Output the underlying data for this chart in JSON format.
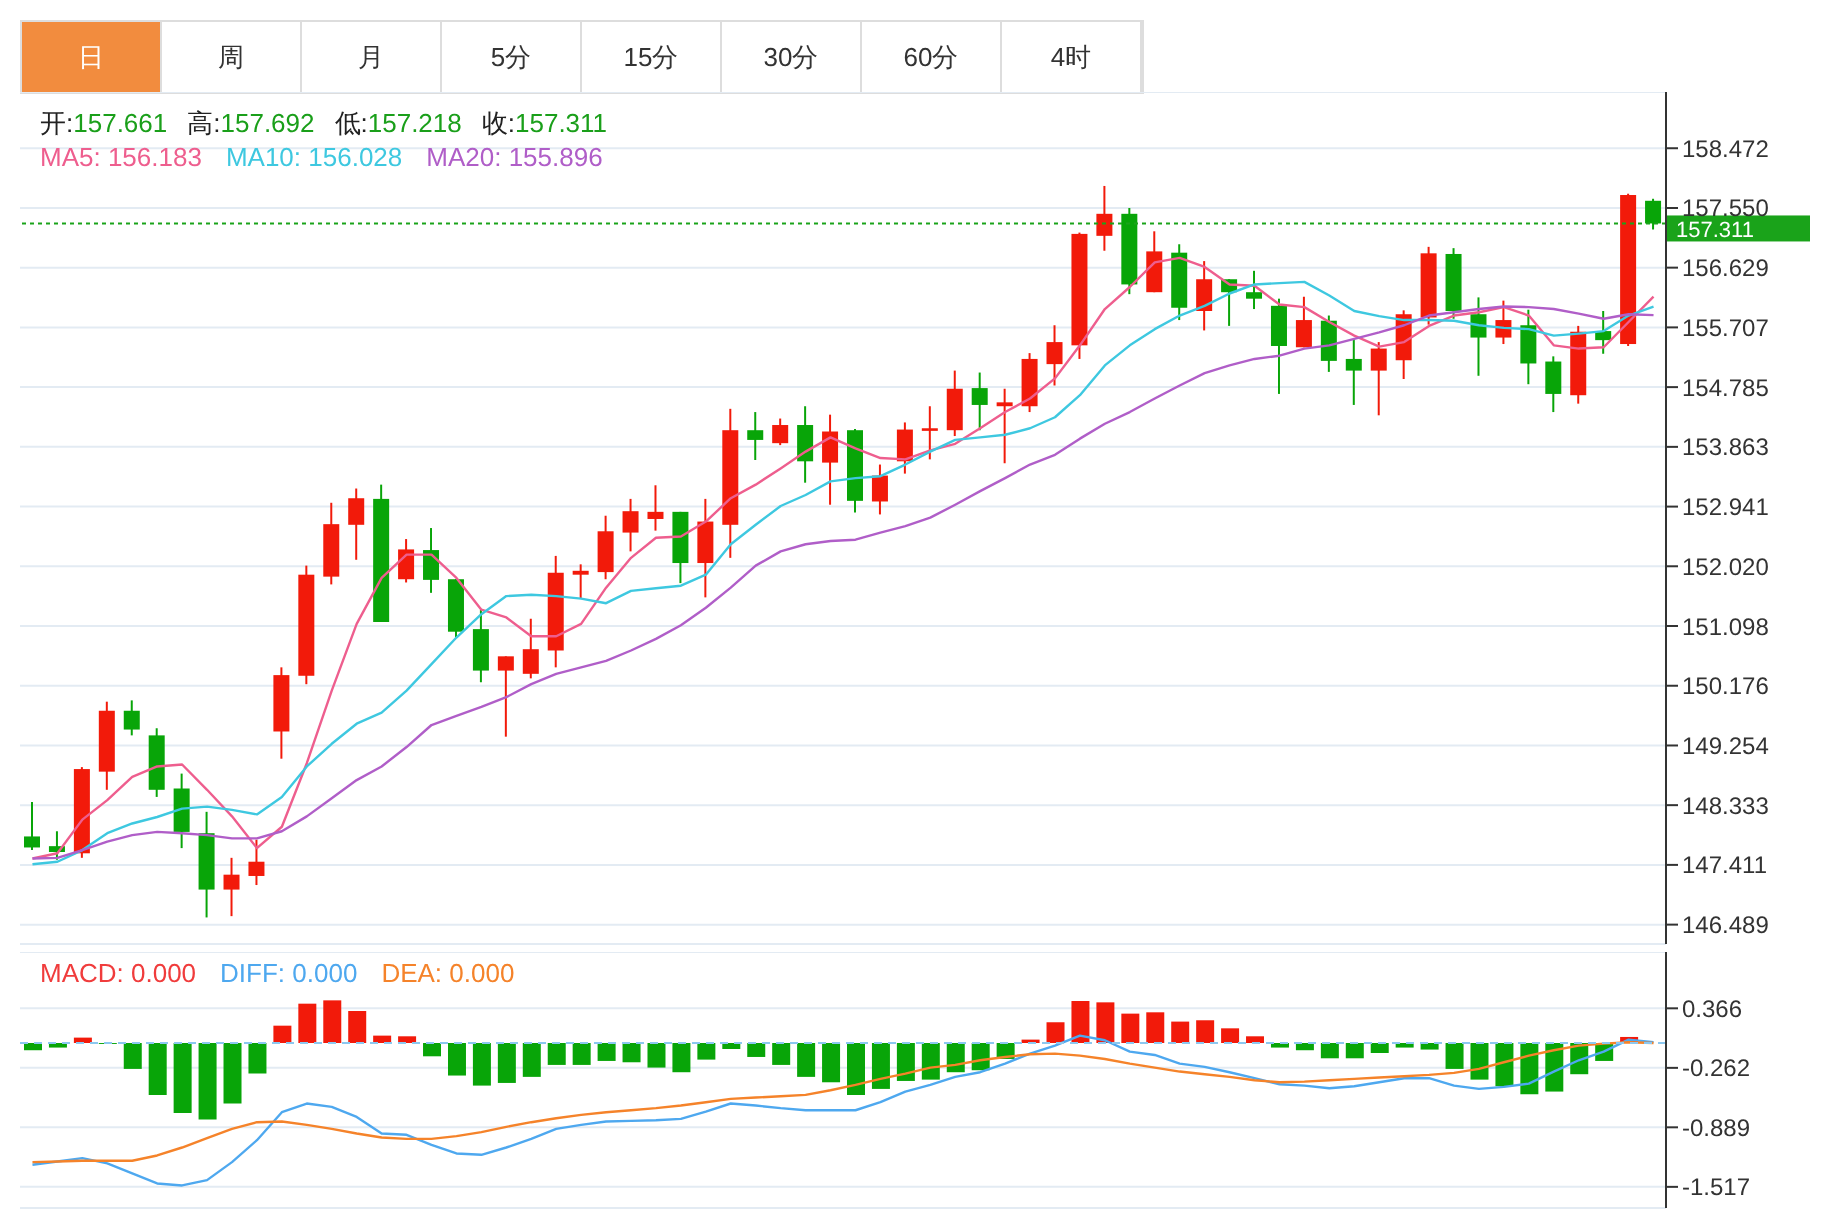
{
  "chart_data": [
    {
      "type": "other",
      "annotations": [
        "日",
        "周",
        "月",
        "5分",
        "15分",
        "30分",
        "60分",
        "4时"
      ]
    },
    {
      "type": "candlestick",
      "categories": [
        null,
        null,
        null,
        null,
        null,
        null,
        null,
        null,
        null,
        null,
        null,
        null,
        null,
        null,
        null,
        null,
        null,
        null,
        null,
        null,
        null,
        null,
        null,
        null,
        null,
        null,
        null,
        null,
        null,
        null,
        null,
        null,
        null,
        null,
        null,
        null,
        null,
        null,
        null,
        null,
        null,
        null,
        null,
        null,
        null,
        null,
        null,
        null,
        null,
        null,
        null,
        null,
        null,
        null,
        null,
        null,
        null,
        null,
        null,
        null,
        null,
        null,
        null,
        null,
        null,
        null
      ],
      "ohlc": [
        [
          147.85,
          148.38,
          147.64,
          147.68
        ],
        [
          147.7,
          147.93,
          147.49,
          147.61
        ],
        [
          147.59,
          148.92,
          147.52,
          148.89
        ],
        [
          148.85,
          149.93,
          148.57,
          149.79
        ],
        [
          149.79,
          149.95,
          149.41,
          149.5
        ],
        [
          149.41,
          149.52,
          148.46,
          148.57
        ],
        [
          148.59,
          148.82,
          147.67,
          147.92
        ],
        [
          147.9,
          148.23,
          146.6,
          147.03
        ],
        [
          147.03,
          147.52,
          146.62,
          147.26
        ],
        [
          147.24,
          147.8,
          147.1,
          147.46
        ],
        [
          149.47,
          150.46,
          149.05,
          150.34
        ],
        [
          150.33,
          152.03,
          150.2,
          151.89
        ],
        [
          151.86,
          153.0,
          151.74,
          152.67
        ],
        [
          152.66,
          153.22,
          152.12,
          153.07
        ],
        [
          153.06,
          153.28,
          151.16,
          151.16
        ],
        [
          151.82,
          152.44,
          151.77,
          152.28
        ],
        [
          152.27,
          152.61,
          151.61,
          151.81
        ],
        [
          151.82,
          151.82,
          150.92,
          151.01
        ],
        [
          151.05,
          151.35,
          150.23,
          150.41
        ],
        [
          150.41,
          150.63,
          149.39,
          150.63
        ],
        [
          150.36,
          151.21,
          150.29,
          150.74
        ],
        [
          150.72,
          152.18,
          150.46,
          151.92
        ],
        [
          151.89,
          152.05,
          151.52,
          151.95
        ],
        [
          151.93,
          152.8,
          151.82,
          152.56
        ],
        [
          152.54,
          153.06,
          152.25,
          152.87
        ],
        [
          152.75,
          153.27,
          152.57,
          152.86
        ],
        [
          152.86,
          152.86,
          151.76,
          152.07
        ],
        [
          152.07,
          153.06,
          151.54,
          152.71
        ],
        [
          152.66,
          154.45,
          152.15,
          154.12
        ],
        [
          154.12,
          154.4,
          153.66,
          153.97
        ],
        [
          153.92,
          154.3,
          153.89,
          154.2
        ],
        [
          154.2,
          154.49,
          153.31,
          153.64
        ],
        [
          153.62,
          154.36,
          152.97,
          154.1
        ],
        [
          154.12,
          154.14,
          152.85,
          153.03
        ],
        [
          153.02,
          153.59,
          152.82,
          153.42
        ],
        [
          153.64,
          154.24,
          153.45,
          154.13
        ],
        [
          154.11,
          154.49,
          153.67,
          154.15
        ],
        [
          154.12,
          155.04,
          154.03,
          154.76
        ],
        [
          154.77,
          155.01,
          154.12,
          154.51
        ],
        [
          154.49,
          154.76,
          153.61,
          154.55
        ],
        [
          154.49,
          155.31,
          154.4,
          155.22
        ],
        [
          155.14,
          155.74,
          154.81,
          155.48
        ],
        [
          155.43,
          157.17,
          155.22,
          157.15
        ],
        [
          157.12,
          157.89,
          156.89,
          157.46
        ],
        [
          157.46,
          157.55,
          156.22,
          156.37
        ],
        [
          156.25,
          157.19,
          156.25,
          156.88
        ],
        [
          156.86,
          156.99,
          155.82,
          156.01
        ],
        [
          155.96,
          156.73,
          155.66,
          156.45
        ],
        [
          156.45,
          156.45,
          155.73,
          156.25
        ],
        [
          156.25,
          156.58,
          155.99,
          156.15
        ],
        [
          156.04,
          156.15,
          154.68,
          155.42
        ],
        [
          155.4,
          156.18,
          155.4,
          155.82
        ],
        [
          155.81,
          155.89,
          155.02,
          155.19
        ],
        [
          155.22,
          155.53,
          154.51,
          155.04
        ],
        [
          155.04,
          155.48,
          154.35,
          155.38
        ],
        [
          155.2,
          155.97,
          154.91,
          155.91
        ],
        [
          155.86,
          156.95,
          155.75,
          156.85
        ],
        [
          156.84,
          156.93,
          155.84,
          155.96
        ],
        [
          155.91,
          156.17,
          154.96,
          155.55
        ],
        [
          155.55,
          156.12,
          155.45,
          155.82
        ],
        [
          155.74,
          155.98,
          154.83,
          155.15
        ],
        [
          155.18,
          155.26,
          154.4,
          154.68
        ],
        [
          154.66,
          155.73,
          154.53,
          155.64
        ],
        [
          155.65,
          155.96,
          155.3,
          155.51
        ],
        [
          155.45,
          157.77,
          155.42,
          157.75
        ],
        [
          157.661,
          157.692,
          157.218,
          157.311
        ]
      ],
      "colors": [
        "#08a508",
        "#08a508",
        "#f21a0a",
        "#f21a0a",
        "#08a508",
        "#08a508",
        "#08a508",
        "#08a508",
        "#f21a0a",
        "#f21a0a",
        "#f21a0a",
        "#f21a0a",
        "#f21a0a",
        "#f21a0a",
        "#08a508",
        "#f21a0a",
        "#08a508",
        "#08a508",
        "#08a508",
        "#f21a0a",
        "#f21a0a",
        "#f21a0a",
        "#f21a0a",
        "#f21a0a",
        "#f21a0a",
        "#f21a0a",
        "#08a508",
        "#f21a0a",
        "#f21a0a",
        "#08a508",
        "#f21a0a",
        "#08a508",
        "#f21a0a",
        "#08a508",
        "#f21a0a",
        "#f21a0a",
        "#f21a0a",
        "#f21a0a",
        "#08a508",
        "#f21a0a",
        "#f21a0a",
        "#f21a0a",
        "#f21a0a",
        "#f21a0a",
        "#08a508",
        "#f21a0a",
        "#08a508",
        "#f21a0a",
        "#08a508",
        "#08a508",
        "#08a508",
        "#f21a0a",
        "#08a508",
        "#08a508",
        "#f21a0a",
        "#f21a0a",
        "#f21a0a",
        "#08a508",
        "#08a508",
        "#f21a0a",
        "#08a508",
        "#08a508",
        "#f21a0a",
        "#08a508",
        "#f21a0a",
        "#08a508"
      ],
      "series": [
        {
          "type": "line",
          "name": "MA5: 156.183",
          "color": "#ee5e8e",
          "values": [
            147.51,
            147.59,
            148.11,
            148.41,
            148.77,
            148.93,
            148.96,
            148.57,
            148.16,
            147.67,
            148.0,
            148.98,
            150.1,
            151.13,
            151.84,
            152.2,
            152.2,
            151.84,
            151.35,
            151.23,
            150.94,
            150.94,
            151.13,
            151.69,
            152.15,
            152.46,
            152.48,
            152.71,
            153.07,
            153.28,
            153.53,
            153.79,
            154.01,
            153.84,
            153.69,
            153.67,
            153.81,
            153.91,
            154.15,
            154.4,
            154.61,
            154.92,
            155.43,
            155.99,
            156.33,
            156.71,
            156.78,
            156.64,
            156.37,
            156.35,
            156.06,
            156.02,
            155.79,
            155.58,
            155.41,
            155.48,
            155.73,
            155.89,
            155.94,
            156.02,
            155.89,
            155.43,
            155.38,
            155.4,
            155.79,
            156.183
          ]
        },
        {
          "type": "line",
          "name": "MA10: 156.028",
          "color": "#3ec8e0",
          "values": [
            147.42,
            147.46,
            147.64,
            147.9,
            148.05,
            148.15,
            148.28,
            148.31,
            148.26,
            148.19,
            148.46,
            148.93,
            149.28,
            149.59,
            149.76,
            150.1,
            150.51,
            150.92,
            151.28,
            151.56,
            151.58,
            151.56,
            151.52,
            151.45,
            151.64,
            151.68,
            151.72,
            151.89,
            152.36,
            152.66,
            152.95,
            153.12,
            153.33,
            153.38,
            153.41,
            153.59,
            153.79,
            153.97,
            154.01,
            154.05,
            154.15,
            154.32,
            154.66,
            155.12,
            155.43,
            155.68,
            155.89,
            156.04,
            156.23,
            156.37,
            156.39,
            156.41,
            156.2,
            155.96,
            155.88,
            155.82,
            155.82,
            155.81,
            155.74,
            155.7,
            155.68,
            155.58,
            155.61,
            155.65,
            155.89,
            156.028
          ]
        },
        {
          "type": "line",
          "name": "MA20: 155.896",
          "color": "#b05ec8",
          "values": [
            147.51,
            147.52,
            147.64,
            147.77,
            147.87,
            147.92,
            147.9,
            147.87,
            147.82,
            147.82,
            147.93,
            148.16,
            148.44,
            148.72,
            148.93,
            149.23,
            149.57,
            149.71,
            149.85,
            150.0,
            150.2,
            150.36,
            150.46,
            150.56,
            150.72,
            150.9,
            151.11,
            151.38,
            151.69,
            152.03,
            152.25,
            152.36,
            152.41,
            152.43,
            152.54,
            152.64,
            152.77,
            152.97,
            153.18,
            153.38,
            153.59,
            153.74,
            153.99,
            154.22,
            154.4,
            154.61,
            154.81,
            155.0,
            155.12,
            155.22,
            155.27,
            155.38,
            155.43,
            155.53,
            155.63,
            155.74,
            155.89,
            155.94,
            155.99,
            156.03,
            156.02,
            155.99,
            155.92,
            155.84,
            155.91,
            155.896
          ]
        }
      ],
      "ylim": [
        146.19,
        159.34
      ],
      "yticks": [
        {
          "value": 146.489,
          "label": "146.489"
        },
        {
          "value": 147.411,
          "label": "147.411"
        },
        {
          "value": 148.333,
          "label": "148.333"
        },
        {
          "value": 149.254,
          "label": "149.254"
        },
        {
          "value": 150.176,
          "label": "150.176"
        },
        {
          "value": 151.098,
          "label": "151.098"
        },
        {
          "value": 152.02,
          "label": "152.020"
        },
        {
          "value": 152.941,
          "label": "152.941"
        },
        {
          "value": 153.863,
          "label": "153.863"
        },
        {
          "value": 154.785,
          "label": "154.785"
        },
        {
          "value": 155.707,
          "label": "155.707"
        },
        {
          "value": 156.629,
          "label": "156.629"
        },
        {
          "value": 157.55,
          "label": "157.550"
        },
        {
          "value": 158.472,
          "label": "158.472"
        }
      ],
      "ref_lines": [
        {
          "axis": "y",
          "value": 157.311,
          "label": "157.311",
          "color": "#1aa31a",
          "line_style": "dotted"
        }
      ],
      "annotations": [
        "开:157.661",
        "高:157.692",
        "低:157.218",
        "收:157.311"
      ],
      "legend": "top left",
      "grid": "y",
      "marker": "none",
      "line_style": "solid",
      "tick_labels": "y"
    },
    {
      "type": "bar",
      "categories": [
        null,
        null,
        null,
        null,
        null,
        null,
        null,
        null,
        null,
        null,
        null,
        null,
        null,
        null,
        null,
        null,
        null,
        null,
        null,
        null,
        null,
        null,
        null,
        null,
        null,
        null,
        null,
        null,
        null,
        null,
        null,
        null,
        null,
        null,
        null,
        null,
        null,
        null,
        null,
        null,
        null,
        null,
        null,
        null,
        null,
        null,
        null,
        null,
        null,
        null,
        null,
        null,
        null,
        null,
        null,
        null,
        null,
        null,
        null,
        null,
        null,
        null,
        null,
        null,
        null,
        null
      ],
      "series": [
        {
          "name": "MACD: 0.000",
          "color": "#f03c3c",
          "values": [
            -0.076,
            -0.048,
            0.057,
            -0.01,
            -0.273,
            -0.547,
            -0.737,
            -0.807,
            -0.638,
            -0.322,
            0.183,
            0.415,
            0.45,
            0.338,
            0.078,
            0.071,
            -0.14,
            -0.343,
            -0.449,
            -0.421,
            -0.357,
            -0.231,
            -0.231,
            -0.189,
            -0.203,
            -0.259,
            -0.308,
            -0.175,
            -0.063,
            -0.147,
            -0.231,
            -0.357,
            -0.414,
            -0.547,
            -0.484,
            -0.4,
            -0.386,
            -0.308,
            -0.287,
            -0.168,
            0.036,
            0.219,
            0.443,
            0.429,
            0.31,
            0.324,
            0.226,
            0.24,
            0.155,
            0.071,
            -0.048,
            -0.076,
            -0.161,
            -0.161,
            -0.105,
            -0.048,
            -0.069,
            -0.273,
            -0.386,
            -0.456,
            -0.54,
            -0.512,
            -0.329,
            -0.189,
            0.064,
            null
          ],
          "colors": [
            "#08a508",
            "#08a508",
            "#f21a0a",
            "#08a508",
            "#08a508",
            "#08a508",
            "#08a508",
            "#08a508",
            "#08a508",
            "#08a508",
            "#f21a0a",
            "#f21a0a",
            "#f21a0a",
            "#f21a0a",
            "#f21a0a",
            "#f21a0a",
            "#08a508",
            "#08a508",
            "#08a508",
            "#08a508",
            "#08a508",
            "#08a508",
            "#08a508",
            "#08a508",
            "#08a508",
            "#08a508",
            "#08a508",
            "#08a508",
            "#08a508",
            "#08a508",
            "#08a508",
            "#08a508",
            "#08a508",
            "#08a508",
            "#08a508",
            "#08a508",
            "#08a508",
            "#08a508",
            "#08a508",
            "#08a508",
            "#f21a0a",
            "#f21a0a",
            "#f21a0a",
            "#f21a0a",
            "#f21a0a",
            "#f21a0a",
            "#f21a0a",
            "#f21a0a",
            "#f21a0a",
            "#f21a0a",
            "#08a508",
            "#08a508",
            "#08a508",
            "#08a508",
            "#08a508",
            "#08a508",
            "#08a508",
            "#08a508",
            "#08a508",
            "#08a508",
            "#08a508",
            "#08a508",
            "#08a508",
            "#08a508",
            "#f21a0a",
            "#f21a0a"
          ]
        },
        {
          "type": "line",
          "name": "DIFF: 0.000",
          "color": "#4ea8ef",
          "values": [
            -1.284,
            -1.249,
            -1.214,
            -1.27,
            -1.376,
            -1.481,
            -1.502,
            -1.446,
            -1.256,
            -1.025,
            -0.73,
            -0.638,
            -0.673,
            -0.779,
            -0.954,
            -0.968,
            -1.074,
            -1.165,
            -1.179,
            -1.102,
            -1.011,
            -0.905,
            -0.863,
            -0.828,
            -0.821,
            -0.814,
            -0.8,
            -0.723,
            -0.638,
            -0.659,
            -0.687,
            -0.709,
            -0.709,
            -0.709,
            -0.624,
            -0.512,
            -0.442,
            -0.357,
            -0.308,
            -0.217,
            -0.111,
            -0.027,
            0.078,
            0.029,
            -0.091,
            -0.126,
            -0.217,
            -0.252,
            -0.308,
            -0.371,
            -0.435,
            -0.449,
            -0.477,
            -0.456,
            -0.414,
            -0.371,
            -0.371,
            -0.449,
            -0.484,
            -0.463,
            -0.428,
            -0.301,
            -0.182,
            -0.091,
            0.036,
            0.01
          ]
        },
        {
          "type": "line",
          "name": "DEA: 0.000",
          "color": "#f5832a",
          "values": [
            -1.256,
            -1.249,
            -1.242,
            -1.242,
            -1.242,
            -1.186,
            -1.102,
            -1.003,
            -0.905,
            -0.835,
            -0.828,
            -0.863,
            -0.905,
            -0.954,
            -0.997,
            -1.011,
            -1.011,
            -0.982,
            -0.94,
            -0.884,
            -0.835,
            -0.793,
            -0.758,
            -0.73,
            -0.709,
            -0.687,
            -0.659,
            -0.624,
            -0.589,
            -0.575,
            -0.561,
            -0.547,
            -0.498,
            -0.442,
            -0.378,
            -0.322,
            -0.259,
            -0.231,
            -0.182,
            -0.147,
            -0.119,
            -0.112,
            -0.133,
            -0.168,
            -0.217,
            -0.259,
            -0.301,
            -0.329,
            -0.357,
            -0.392,
            -0.414,
            -0.407,
            -0.392,
            -0.378,
            -0.364,
            -0.35,
            -0.336,
            -0.315,
            -0.273,
            -0.203,
            -0.133,
            -0.076,
            -0.027,
            -0.006,
            0.008,
            0
          ]
        }
      ],
      "ylim": [
        -1.74,
        0.96
      ],
      "yticks": [
        0.366,
        -0.262,
        -0.889,
        -1.517
      ],
      "ref_lines": [
        {
          "axis": "y",
          "value": 0,
          "color": "#8cc8f0",
          "line_style": "dashed"
        }
      ],
      "legend": "top left",
      "grid": "y",
      "marker": "none",
      "line_style": "solid",
      "tick_labels": "y"
    }
  ]
}
